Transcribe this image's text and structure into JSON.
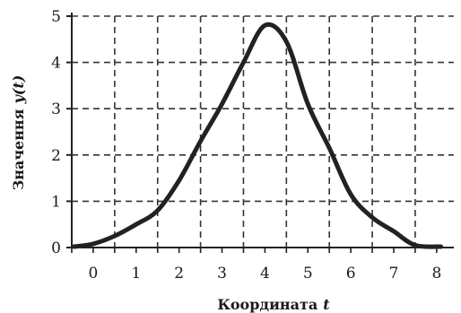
{
  "chart_data": {
    "type": "line",
    "xlabel": "Координата",
    "xlabel_var": "t",
    "ylabel": "Значення",
    "ylabel_var": "y(t)",
    "xlim": [
      -0.5,
      8.4
    ],
    "ylim": [
      0,
      5
    ],
    "x_ticks": [
      0,
      1,
      2,
      3,
      4,
      5,
      6,
      7,
      8
    ],
    "y_ticks": [
      0,
      1,
      2,
      3,
      4,
      5
    ],
    "x_tick_labels": [
      "0",
      "1",
      "2",
      "3",
      "4",
      "5",
      "6",
      "7",
      "8"
    ],
    "y_tick_labels": [
      "0",
      "1",
      "2",
      "3",
      "4",
      "5"
    ],
    "grid": true,
    "grid_style": "dashed",
    "line_color": "#222222",
    "series": [
      {
        "x": [
          -0.45,
          0,
          0.5,
          1,
          1.5,
          2,
          2.5,
          3,
          3.5,
          4,
          4.5,
          5,
          5.5,
          6,
          6.5,
          7,
          7.5,
          8.1
        ],
        "y": [
          0.02,
          0.08,
          0.25,
          0.5,
          0.8,
          1.45,
          2.3,
          3.1,
          4.0,
          4.8,
          4.45,
          3.1,
          2.15,
          1.15,
          0.65,
          0.35,
          0.05,
          0.02
        ]
      }
    ]
  }
}
